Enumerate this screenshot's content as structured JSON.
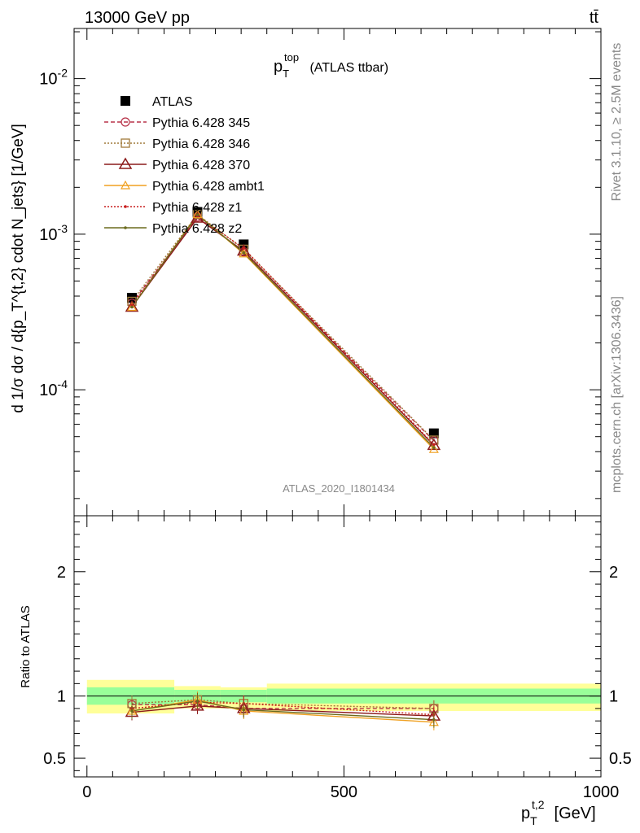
{
  "header": {
    "energy_label": "13000 GeV pp",
    "process_label": "tt̄",
    "analysis_id": "ATLAS_2020_I1801434",
    "side_label_top": "Rivet 3.1.10, ≥ 2.5M events",
    "side_label_bottom": "mcplots.cern.ch [arXiv:1306.3436]"
  },
  "colors": {
    "ATLAS": "#000000",
    "Pythia 6.428 345": "#b8344a",
    "Pythia 6.428 346": "#a07a3a",
    "Pythia 6.428 370": "#8b1a1a",
    "Pythia 6.428 ambt1": "#f0a020",
    "Pythia 6.428 z1": "#c81e1e",
    "Pythia 6.428 z2": "#6b6b1e",
    "band_inner": "#99ff99",
    "band_outer": "#ffff99"
  },
  "chart_data": [
    {
      "type": "line",
      "title_main": "p",
      "title_sub": "T",
      "title_sup": "top",
      "title_rest": "(ATLAS ttbar)",
      "ylabel": "d 1/σ dσ / d{p_T^{t,2} cdot N_jets} [1/GeV]",
      "yscale": "log",
      "xlim": [
        -25,
        1000
      ],
      "ylim": [
        1.55e-05,
        0.021
      ],
      "y_tick_labels": [
        "10^-2",
        "10^-3",
        "10^-4"
      ],
      "x": [
        87.5,
        215,
        305,
        675
      ],
      "series": [
        {
          "name": "ATLAS",
          "style": "data",
          "values": [
            0.00039,
            0.00139,
            0.00086,
            5.25e-05
          ]
        },
        {
          "name": "Pythia 6.428 345",
          "style": "dashed-circle",
          "values": [
            0.00036,
            0.00129,
            0.00077,
            4.7e-05
          ]
        },
        {
          "name": "Pythia 6.428 346",
          "style": "dotted-square",
          "values": [
            0.00037,
            0.00134,
            0.0008,
            4.75e-05
          ]
        },
        {
          "name": "Pythia 6.428 370",
          "style": "solid-triangle",
          "values": [
            0.00034,
            0.00127,
            0.00078,
            4.4e-05
          ]
        },
        {
          "name": "Pythia 6.428 ambt1",
          "style": "solid-triangle-open",
          "values": [
            0.00034,
            0.00134,
            0.00075,
            4.15e-05
          ]
        },
        {
          "name": "Pythia 6.428 z1",
          "style": "dotted-dot",
          "values": [
            0.00035,
            0.00131,
            0.00081,
            4.45e-05
          ]
        },
        {
          "name": "Pythia 6.428 z2",
          "style": "solid-dot",
          "values": [
            0.00034,
            0.00133,
            0.00076,
            4.25e-05
          ]
        }
      ]
    },
    {
      "type": "line",
      "ylabel": "Ratio to ATLAS",
      "xlabel_main": "p",
      "xlabel_sub": "T",
      "xlabel_sup": "t,2",
      "xlabel_rest": "[GeV]",
      "xlim": [
        -25,
        1000
      ],
      "ylim": [
        0.35,
        2.45
      ],
      "x_tick_labels": [
        "0",
        "500",
        "1000"
      ],
      "y_tick_labels": [
        "0.5",
        "1",
        "2"
      ],
      "x": [
        87.5,
        215,
        305,
        675
      ],
      "bands": [
        {
          "x0": 0,
          "x1": 170,
          "inner": [
            0.93,
            1.07
          ],
          "outer": [
            0.86,
            1.13
          ]
        },
        {
          "x0": 170,
          "x1": 260,
          "inner": [
            0.95,
            1.05
          ],
          "outer": [
            0.9,
            1.08
          ]
        },
        {
          "x0": 260,
          "x1": 350,
          "inner": [
            0.95,
            1.05
          ],
          "outer": [
            0.9,
            1.07
          ]
        },
        {
          "x0": 350,
          "x1": 1000,
          "inner": [
            0.94,
            1.06
          ],
          "outer": [
            0.88,
            1.1
          ]
        }
      ],
      "series": [
        {
          "name": "Pythia 6.428 345",
          "values": [
            0.93,
            0.93,
            0.9,
            0.9
          ]
        },
        {
          "name": "Pythia 6.428 346",
          "values": [
            0.94,
            0.97,
            0.94,
            0.9
          ]
        },
        {
          "name": "Pythia 6.428 370",
          "values": [
            0.87,
            0.92,
            0.9,
            0.84
          ]
        },
        {
          "name": "Pythia 6.428 ambt1",
          "values": [
            0.88,
            0.97,
            0.88,
            0.79
          ]
        },
        {
          "name": "Pythia 6.428 z1",
          "values": [
            0.9,
            0.95,
            0.94,
            0.85
          ]
        },
        {
          "name": "Pythia 6.428 z2",
          "values": [
            0.88,
            0.96,
            0.89,
            0.81
          ]
        }
      ]
    }
  ]
}
